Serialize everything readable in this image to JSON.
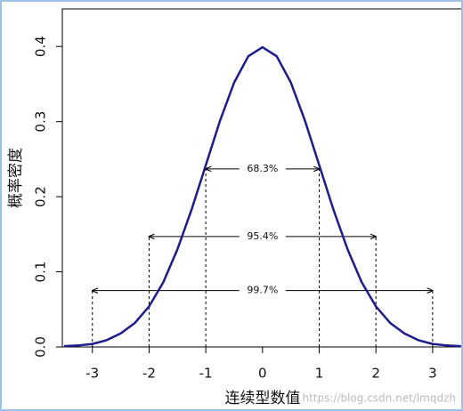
{
  "chart_data": {
    "type": "line",
    "xlabel": "连续型数值",
    "ylabel": "概率密度",
    "x": [
      -3.5,
      -3.25,
      -3,
      -2.75,
      -2.5,
      -2.25,
      -2,
      -1.75,
      -1.5,
      -1.25,
      -1,
      -0.75,
      -0.5,
      -0.25,
      0,
      0.25,
      0.5,
      0.75,
      1,
      1.25,
      1.5,
      1.75,
      2,
      2.25,
      2.5,
      2.75,
      3,
      3.25,
      3.5
    ],
    "y": [
      0.001,
      0.002,
      0.004,
      0.009,
      0.018,
      0.032,
      0.054,
      0.086,
      0.13,
      0.183,
      0.242,
      0.301,
      0.352,
      0.387,
      0.399,
      0.387,
      0.352,
      0.301,
      0.242,
      0.183,
      0.13,
      0.086,
      0.054,
      0.032,
      0.018,
      0.009,
      0.004,
      0.002,
      0.001
    ],
    "color": "#1c1c8c",
    "xlim": [
      -3.53,
      3.52
    ],
    "ylim": [
      0,
      0.45
    ],
    "xticks": [
      -3,
      -2,
      -1,
      0,
      1,
      2,
      3
    ],
    "yticks": [
      {
        "value": 0,
        "label": "0.0"
      },
      0.1,
      0.2,
      0.3,
      0.4
    ],
    "annotations": [
      {
        "label": "68.3%",
        "x": [
          -1,
          1
        ],
        "y": 0.237
      },
      {
        "label": "95.4%",
        "x": [
          -2,
          2
        ],
        "y": 0.147
      },
      {
        "label": "99.7%",
        "x": [
          -3,
          3
        ],
        "y": 0.075
      }
    ],
    "watermark": "https://blog.csdn.net/lmqdzh"
  }
}
